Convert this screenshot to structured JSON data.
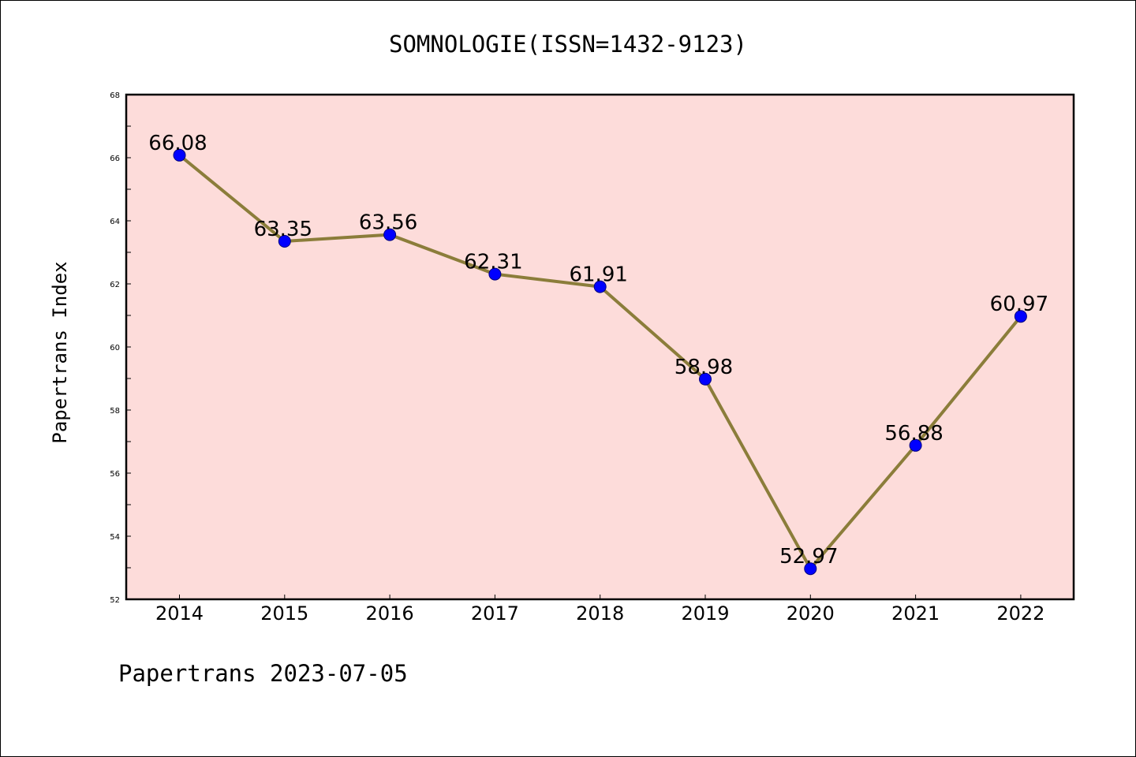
{
  "colors": {
    "plot_background": "#fddcda",
    "line": "#8b7d3a",
    "marker": "#0000ff",
    "marker_edge": "#000080"
  },
  "chart_data": {
    "type": "line",
    "title": "SOMNOLOGIE(ISSN=1432-9123)",
    "xlabel": "",
    "ylabel": "Papertrans Index",
    "categories": [
      "2014",
      "2015",
      "2016",
      "2017",
      "2018",
      "2019",
      "2020",
      "2021",
      "2022"
    ],
    "series": [
      {
        "values": [
          66.08,
          63.35,
          63.56,
          62.31,
          61.91,
          58.98,
          52.97,
          56.88,
          60.97
        ]
      }
    ],
    "data_labels": [
      "66.08",
      "63.35",
      "63.56",
      "62.31",
      "61.91",
      "58.98",
      "52.97",
      "56.88",
      "60.97"
    ],
    "ylim": [
      52,
      68
    ],
    "yticks": [
      52,
      54,
      56,
      58,
      60,
      62,
      64,
      66,
      68
    ],
    "grid": false,
    "legend": "none"
  },
  "footer": "Papertrans 2023-07-05"
}
